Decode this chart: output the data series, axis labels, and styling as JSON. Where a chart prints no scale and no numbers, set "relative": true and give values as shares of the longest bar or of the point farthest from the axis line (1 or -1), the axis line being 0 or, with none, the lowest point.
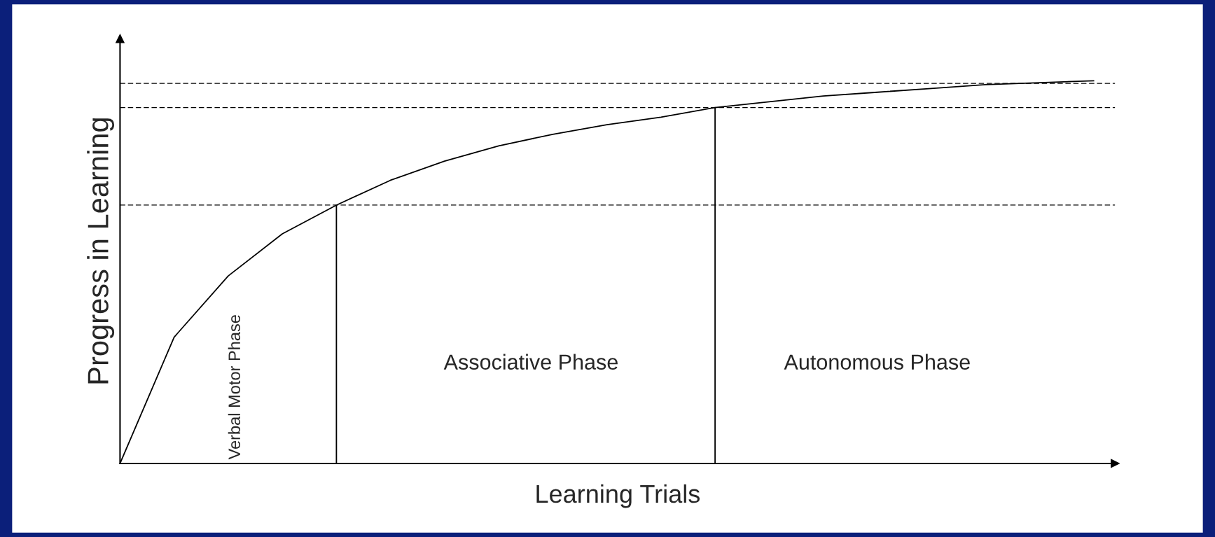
{
  "chart_data": {
    "type": "line",
    "relative": true,
    "xlabel": "Learning Trials",
    "ylabel": "Progress in Learning",
    "categories": [
      null,
      null,
      null,
      null,
      null,
      null,
      null,
      null,
      null,
      null,
      null,
      null,
      null,
      null,
      null,
      null,
      null,
      null,
      null
    ],
    "series": [
      {
        "color": "#000000",
        "values": [
          0,
          0.33,
          0.49,
          0.6,
          0.675,
          0.74,
          0.79,
          0.83,
          0.86,
          0.885,
          0.905,
          0.93,
          0.945,
          0.96,
          0.97,
          0.98,
          0.99,
          0.995,
          1
        ]
      }
    ],
    "ref_lines": [
      {
        "axis": "y",
        "value": 0.675,
        "color": "#000000",
        "line_style": "dashed"
      },
      {
        "axis": "y",
        "value": 0.93,
        "color": "#000000",
        "line_style": "dashed"
      },
      {
        "axis": "y",
        "value": 0.993,
        "color": "#000000",
        "line_style": "dashed"
      }
    ],
    "annotations": [
      "Verbal Motor Phase",
      "Associative Phase",
      "Autonomous Phase"
    ],
    "grid": false,
    "legend": false,
    "marker": "none",
    "line_style": "solid"
  }
}
